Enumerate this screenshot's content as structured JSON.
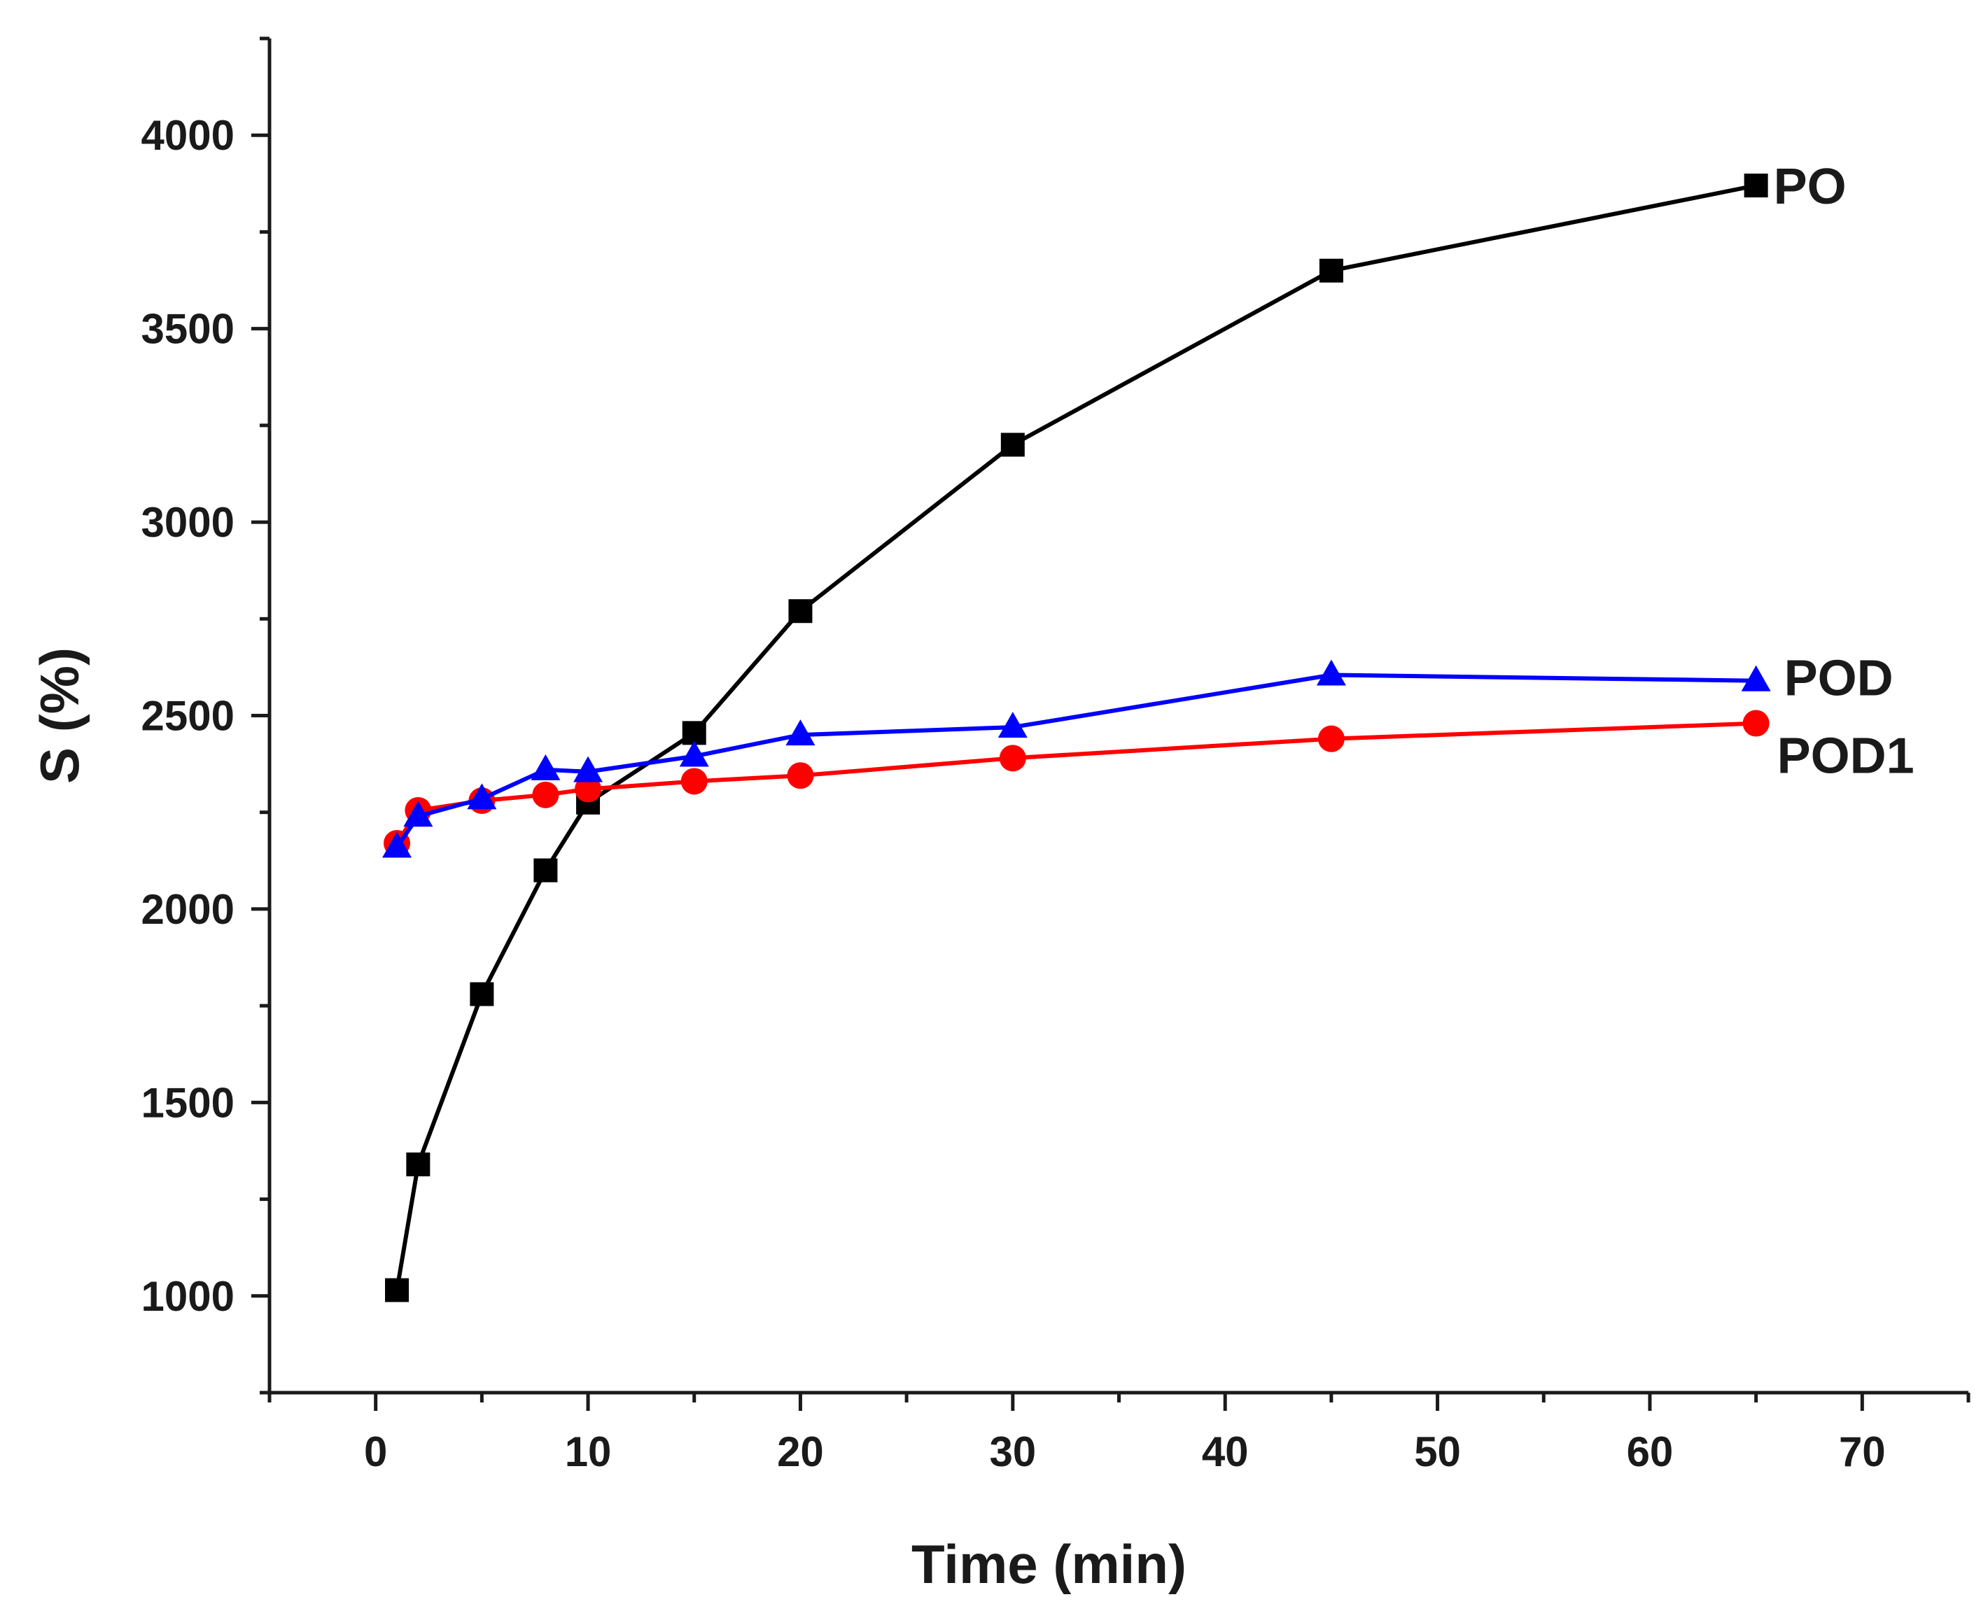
{
  "chart_data": {
    "type": "line",
    "title": "",
    "xlabel": "Time (min)",
    "ylabel": "S (%)",
    "xlim": [
      -5,
      75
    ],
    "ylim": [
      750,
      4250
    ],
    "xticks": [
      0,
      10,
      20,
      30,
      40,
      50,
      60,
      70
    ],
    "xtick_labels": [
      "0",
      "10",
      "20",
      "30",
      "40",
      "50",
      "60",
      "70"
    ],
    "yticks": [
      1000,
      1500,
      2000,
      2500,
      3000,
      3500,
      4000
    ],
    "ytick_labels": [
      "1000",
      "1500",
      "2000",
      "2500",
      "3000",
      "3500",
      "4000"
    ],
    "grid": false,
    "legend": "inline labels at line ends",
    "series": [
      {
        "name": "PO",
        "color": "#000000",
        "marker": "square",
        "x": [
          1,
          2,
          5,
          8,
          10,
          15,
          20,
          30,
          45,
          65
        ],
        "y": [
          1015,
          1340,
          1780,
          2100,
          2275,
          2455,
          2770,
          3200,
          3650,
          3870
        ]
      },
      {
        "name": "POD",
        "color": "#0000ff",
        "marker": "triangle",
        "x": [
          1,
          2,
          5,
          8,
          10,
          15,
          20,
          30,
          45,
          65
        ],
        "y": [
          2160,
          2240,
          2285,
          2360,
          2355,
          2395,
          2450,
          2470,
          2605,
          2590
        ]
      },
      {
        "name": "POD1",
        "color": "#ff0000",
        "marker": "circle",
        "x": [
          1,
          2,
          5,
          8,
          10,
          15,
          20,
          30,
          45,
          65
        ],
        "y": [
          2170,
          2255,
          2280,
          2295,
          2310,
          2330,
          2345,
          2390,
          2440,
          2480
        ]
      }
    ]
  }
}
